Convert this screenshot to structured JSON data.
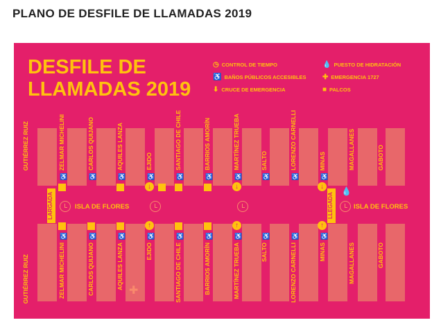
{
  "page_title": "PLANO DE DESFILE DE LLAMADAS 2019",
  "map": {
    "heading_line1": "DESFILE DE",
    "heading_line2": "LLAMADAS 2019",
    "legend": [
      {
        "icon": "clock-icon",
        "label": "CONTROL DE TIEMPO"
      },
      {
        "icon": "toilet-icon",
        "label": "BAÑOS PÚBLICOS ACCESIBLES"
      },
      {
        "icon": "arrow-circle-icon",
        "label": "CRUCE DE EMERGENCIA"
      },
      {
        "icon": "drop-icon",
        "label": "PUESTO DE HIDRATACIÓN"
      },
      {
        "icon": "cross-icon",
        "label": "EMERGENCIA 1727"
      },
      {
        "icon": "square-icon",
        "label": "PALCOS"
      }
    ],
    "streets": [
      "GUTIÉRREZ RUIZ",
      "ZELMAR MICHELINI",
      "CARLOS QUIJANO",
      "AQUILES LANZA",
      "EJIDO",
      "SANTIAGO DE CHILE",
      "BARRIOS AMORÍN",
      "MARTÍNEZ TRUEBA",
      "SALTO",
      "LORENZO CARNELLI",
      "MINAS",
      "MAGALLANES",
      "GABOTO"
    ],
    "avenue": "ISLA DE FLORES",
    "start_label": "LARGADA",
    "finish_label": "LLEGADA",
    "colors": {
      "background": "#e41f6a",
      "accent": "#ffc20e",
      "block": "#e8676a"
    }
  }
}
